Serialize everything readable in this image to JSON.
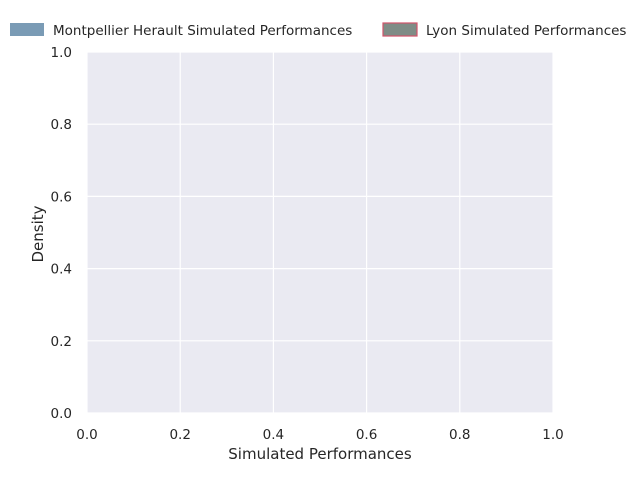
{
  "chart_data": {
    "type": "area",
    "title": "",
    "xlabel": "Simulated Performances",
    "ylabel": "Density",
    "xlim": [
      0.0,
      1.0
    ],
    "ylim": [
      0.0,
      1.0
    ],
    "xticks": [
      "0.0",
      "0.2",
      "0.4",
      "0.6",
      "0.8",
      "1.0"
    ],
    "yticks": [
      "0.0",
      "0.2",
      "0.4",
      "0.6",
      "0.8",
      "1.0"
    ],
    "grid": true,
    "legend_position": "top",
    "series": [
      {
        "name": "Montpellier Herault Simulated Performances",
        "color": "#7a9bb5",
        "edge_color": "#7a9bb5",
        "x": [],
        "y": []
      },
      {
        "name": "Lyon Simulated Performances",
        "color": "#7f8c86",
        "edge_color": "#d0546a",
        "x": [],
        "y": []
      }
    ]
  },
  "colors": {
    "plot_background": "#eaeaf2",
    "grid": "#ffffff",
    "text": "#262626"
  }
}
